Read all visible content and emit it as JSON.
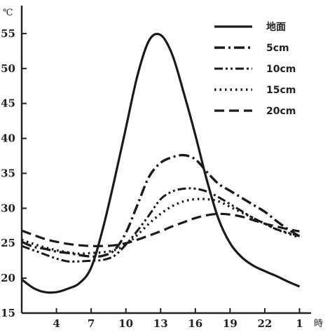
{
  "chart_data": {
    "type": "line",
    "y_unit": "℃",
    "x_unit": "時",
    "x_ticks": [
      4,
      7,
      10,
      13,
      16,
      19,
      22,
      1
    ],
    "y_ticks": [
      15,
      20,
      25,
      30,
      35,
      40,
      45,
      50,
      55
    ],
    "xlim": [
      1,
      26
    ],
    "ylim": [
      15,
      59
    ],
    "grid": false,
    "legend_position": "top-right",
    "series": [
      {
        "name": "地面",
        "style": "solid",
        "x": [
          1,
          2,
          3,
          4,
          5,
          6,
          7,
          8,
          9,
          10,
          11,
          12,
          13,
          14,
          15,
          16,
          17,
          18,
          19,
          20,
          21,
          22,
          23,
          24,
          25
        ],
        "y": [
          19.8,
          18.6,
          18,
          18,
          18.5,
          19.3,
          21.5,
          27,
          34,
          41.5,
          49,
          54,
          54.8,
          52,
          46.5,
          40.5,
          34,
          28.5,
          25,
          23,
          21.8,
          21,
          20.3,
          19.5,
          18.8
        ]
      },
      {
        "name": "5cm",
        "style": "dash-dot",
        "x": [
          1,
          2,
          3,
          4,
          5,
          6,
          7,
          8,
          9,
          10,
          11,
          12,
          13,
          14,
          15,
          16,
          17,
          18,
          19,
          20,
          21,
          22,
          23,
          24,
          25
        ],
        "y": [
          25.2,
          24.5,
          24.2,
          23.8,
          23.6,
          23.3,
          23.1,
          23.2,
          24,
          26.5,
          30.5,
          34.5,
          36.5,
          37.3,
          37.6,
          37,
          35.2,
          33.5,
          32.5,
          31.5,
          30.5,
          29.5,
          28.2,
          27,
          26
        ]
      },
      {
        "name": "10cm",
        "style": "dash-dot-dot",
        "x": [
          1,
          2,
          3,
          4,
          5,
          6,
          7,
          8,
          9,
          10,
          11,
          12,
          13,
          14,
          15,
          16,
          17,
          18,
          19,
          20,
          21,
          22,
          23,
          24,
          25
        ],
        "y": [
          24.6,
          24,
          23.4,
          22.8,
          22.4,
          22.4,
          22.5,
          22.6,
          23.2,
          24.8,
          26.8,
          29,
          31.3,
          32.4,
          32.8,
          32.8,
          32.4,
          31.6,
          30.6,
          29.6,
          28.6,
          27.8,
          27,
          26.5,
          26
        ]
      },
      {
        "name": "15cm",
        "style": "dotted",
        "x": [
          1,
          2,
          3,
          4,
          5,
          6,
          7,
          8,
          9,
          10,
          11,
          12,
          13,
          14,
          15,
          16,
          17,
          18,
          19,
          20,
          21,
          22,
          23,
          24,
          25
        ],
        "y": [
          25.5,
          24.9,
          24.4,
          24,
          23.7,
          23.5,
          23.6,
          23.7,
          24,
          24.8,
          26.2,
          27.8,
          29.2,
          30.3,
          31,
          31.3,
          31.3,
          31,
          30.2,
          29.4,
          28.6,
          27.8,
          27,
          26.4,
          25.8
        ]
      },
      {
        "name": "20cm",
        "style": "dashed",
        "x": [
          1,
          2,
          3,
          4,
          5,
          6,
          7,
          8,
          9,
          10,
          11,
          12,
          13,
          14,
          15,
          16,
          17,
          18,
          19,
          20,
          21,
          22,
          23,
          24,
          25
        ],
        "y": [
          26.8,
          26.2,
          25.6,
          25.2,
          24.9,
          24.7,
          24.6,
          24.6,
          24.7,
          25,
          25.5,
          26.1,
          26.7,
          27.4,
          28,
          28.6,
          29,
          29.2,
          29.1,
          28.8,
          28.3,
          27.8,
          27.4,
          27,
          26.7
        ]
      }
    ]
  }
}
